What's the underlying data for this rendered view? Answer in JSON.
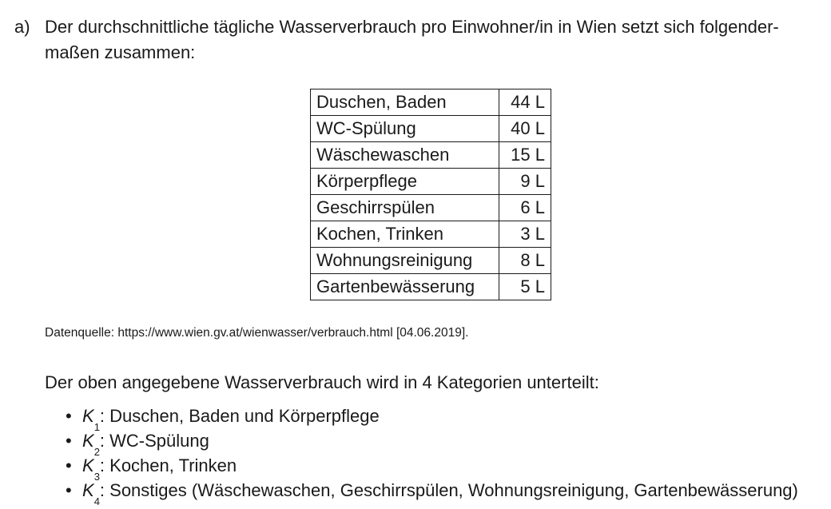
{
  "task": {
    "label": "a)",
    "intro": "Der durchschnittliche tägliche Wasserverbrauch pro Einwohner/in in Wien setzt sich folgender­maßen zusammen:"
  },
  "table": {
    "rows": [
      {
        "category": "Duschen, Baden",
        "value": "44 L"
      },
      {
        "category": "WC-Spülung",
        "value": "40 L"
      },
      {
        "category": "Wäschewaschen",
        "value": "15 L"
      },
      {
        "category": "Körperpflege",
        "value": "9 L"
      },
      {
        "category": "Geschirrspülen",
        "value": "6 L"
      },
      {
        "category": "Kochen, Trinken",
        "value": "3 L"
      },
      {
        "category": "Wohnungsreinigung",
        "value": "8 L"
      },
      {
        "category": "Gartenbewässerung",
        "value": "5 L"
      }
    ]
  },
  "source": "Datenquelle: https://www.wien.gv.at/wienwasser/verbrauch.html [04.06.2019].",
  "categories_intro": "Der oben angegebene Wasserverbrauch wird in 4 Kategorien unterteilt:",
  "categories": [
    {
      "letter": "K",
      "index": "1",
      "text": ": Duschen, Baden und Körperpflege"
    },
    {
      "letter": "K",
      "index": "2",
      "text": ": WC-Spülung"
    },
    {
      "letter": "K",
      "index": "3",
      "text": ": Kochen, Trinken"
    },
    {
      "letter": "K",
      "index": "4",
      "text": ": Sonstiges (Wäschewaschen, Geschirrspülen, Wohnungsreinigung, Gartenbewässerung)"
    }
  ]
}
